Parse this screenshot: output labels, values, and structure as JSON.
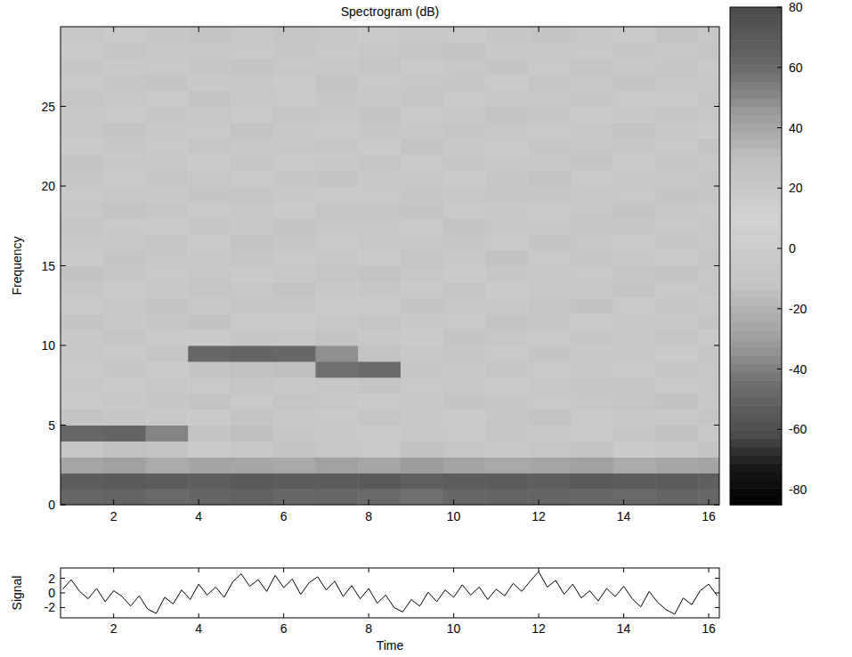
{
  "chart_data": [
    {
      "type": "heatmap",
      "title": "Spectrogram (dB)",
      "y_label": "Frequency",
      "x_bins": [
        0.75,
        1.75,
        2.75,
        3.75,
        4.75,
        5.75,
        6.75,
        7.75,
        8.75,
        9.75,
        10.75,
        11.75,
        12.75,
        13.75,
        14.75,
        15.75,
        16.25
      ],
      "y_bins": [
        0,
        1,
        2,
        3,
        4,
        5,
        6,
        7,
        8,
        9,
        10,
        11,
        12,
        13,
        14,
        15,
        16,
        17,
        18,
        19,
        20,
        21,
        22,
        23,
        24,
        25,
        26,
        27,
        28,
        29,
        30
      ],
      "cells": [
        [
          62,
          64,
          60,
          63,
          65,
          61,
          62,
          60,
          58,
          62,
          64,
          63,
          61,
          60,
          63,
          62
        ],
        [
          68,
          70,
          69,
          67,
          70,
          68,
          69,
          70,
          66,
          68,
          69,
          67,
          70,
          68,
          69,
          67
        ],
        [
          40,
          42,
          38,
          41,
          40,
          39,
          42,
          40,
          44,
          41,
          39,
          40,
          42,
          38,
          40,
          41
        ],
        [
          22,
          28,
          25,
          18,
          20,
          24,
          21,
          19,
          26,
          23,
          20,
          22,
          25,
          18,
          21,
          24
        ],
        [
          62,
          64,
          52,
          24,
          30,
          22,
          20,
          18,
          21,
          19,
          23,
          20,
          18,
          22,
          28,
          20
        ],
        [
          25,
          22,
          20,
          18,
          24,
          21,
          19,
          23,
          20,
          18,
          22,
          25,
          19,
          21,
          20,
          23
        ],
        [
          18,
          20,
          22,
          25,
          19,
          23,
          21,
          18,
          20,
          24,
          22,
          19,
          21,
          23,
          26,
          20
        ],
        [
          20,
          18,
          21,
          19,
          23,
          20,
          22,
          24,
          19,
          21,
          18,
          20,
          23,
          22,
          19,
          21
        ],
        [
          19,
          22,
          18,
          24,
          28,
          30,
          58,
          60,
          22,
          20,
          23,
          19,
          21,
          18,
          22,
          20
        ],
        [
          21,
          19,
          23,
          62,
          63,
          62,
          48,
          25,
          20,
          22,
          19,
          24,
          20,
          21,
          18,
          22
        ],
        [
          20,
          23,
          19,
          18,
          22,
          21,
          25,
          20,
          18,
          24,
          21,
          19,
          22,
          20,
          23,
          18
        ],
        [
          24,
          20,
          22,
          26,
          19,
          18,
          21,
          23,
          20,
          19,
          25,
          22,
          18,
          21,
          20,
          24
        ],
        [
          19,
          21,
          25,
          20,
          23,
          22,
          18,
          19,
          24,
          21,
          20,
          23,
          26,
          19,
          22,
          20
        ],
        [
          22,
          18,
          20,
          23,
          21,
          25,
          20,
          22,
          19,
          23,
          18,
          21,
          20,
          24,
          19,
          22
        ],
        [
          26,
          22,
          19,
          21,
          18,
          20,
          23,
          25,
          21,
          18,
          22,
          20,
          19,
          23,
          25,
          21
        ],
        [
          18,
          24,
          21,
          20,
          22,
          19,
          21,
          18,
          23,
          20,
          26,
          19,
          22,
          20,
          18,
          23
        ],
        [
          21,
          20,
          23,
          18,
          25,
          22,
          19,
          21,
          20,
          22,
          19,
          24,
          21,
          18,
          22,
          20
        ],
        [
          23,
          19,
          18,
          22,
          20,
          24,
          21,
          20,
          18,
          25,
          21,
          20,
          23,
          22,
          19,
          21
        ],
        [
          20,
          25,
          22,
          19,
          21,
          18,
          23,
          22,
          24,
          19,
          20,
          18,
          21,
          25,
          20,
          19
        ],
        [
          19,
          21,
          20,
          24,
          23,
          20,
          18,
          19,
          22,
          21,
          23,
          22,
          20,
          19,
          24,
          22
        ],
        [
          22,
          18,
          23,
          21,
          19,
          22,
          24,
          20,
          21,
          18,
          22,
          25,
          19,
          21,
          20,
          23
        ],
        [
          25,
          20,
          21,
          18,
          22,
          19,
          20,
          23,
          19,
          22,
          20,
          21,
          24,
          18,
          22,
          20
        ],
        [
          18,
          22,
          19,
          23,
          20,
          21,
          22,
          18,
          25,
          20,
          19,
          23,
          21,
          22,
          19,
          24
        ],
        [
          21,
          24,
          20,
          19,
          25,
          20,
          18,
          22,
          20,
          23,
          21,
          19,
          20,
          25,
          21,
          18
        ],
        [
          20,
          19,
          22,
          21,
          18,
          23,
          21,
          24,
          19,
          20,
          25,
          22,
          18,
          20,
          23,
          21
        ],
        [
          23,
          21,
          18,
          25,
          20,
          19,
          22,
          20,
          23,
          19,
          21,
          20,
          22,
          19,
          18,
          22
        ],
        [
          19,
          22,
          24,
          20,
          21,
          18,
          25,
          19,
          21,
          22,
          18,
          23,
          20,
          24,
          21,
          20
        ],
        [
          22,
          20,
          19,
          22,
          24,
          21,
          20,
          23,
          18,
          21,
          24,
          19,
          23,
          20,
          22,
          19
        ],
        [
          18,
          23,
          21,
          20,
          19,
          22,
          19,
          21,
          22,
          25,
          20,
          21,
          19,
          22,
          20,
          23
        ],
        [
          21,
          19,
          22,
          24,
          20,
          23,
          21,
          18,
          20,
          19,
          22,
          24,
          21,
          18,
          25,
          20
        ]
      ],
      "xlim": [
        0.75,
        16.25
      ],
      "ylim": [
        0,
        30
      ],
      "xticks": [
        2,
        4,
        6,
        8,
        10,
        12,
        14,
        16
      ],
      "yticks": [
        0,
        5,
        10,
        15,
        20,
        25
      ],
      "colorbar_range": [
        -85,
        80
      ],
      "colorbar_ticks": [
        -80,
        -60,
        -40,
        -20,
        0,
        20,
        40,
        60,
        80
      ]
    },
    {
      "type": "line",
      "x_label": "Time",
      "y_label": "Signal",
      "color": "#000000",
      "x": [
        0.8,
        1,
        1.2,
        1.4,
        1.6,
        1.8,
        2,
        2.2,
        2.4,
        2.6,
        2.8,
        3,
        3.2,
        3.4,
        3.6,
        3.8,
        4,
        4.2,
        4.4,
        4.6,
        4.8,
        5,
        5.2,
        5.4,
        5.6,
        5.8,
        6,
        6.2,
        6.4,
        6.6,
        6.8,
        7,
        7.2,
        7.4,
        7.6,
        7.8,
        8,
        8.2,
        8.4,
        8.6,
        8.8,
        9,
        9.2,
        9.4,
        9.6,
        9.8,
        10,
        10.2,
        10.4,
        10.6,
        10.8,
        11,
        11.2,
        11.4,
        11.6,
        11.8,
        12,
        12.2,
        12.4,
        12.6,
        12.8,
        13,
        13.2,
        13.4,
        13.6,
        13.8,
        14,
        14.2,
        14.4,
        14.6,
        14.8,
        15,
        15.2,
        15.4,
        15.6,
        15.8,
        16,
        16.2
      ],
      "values": [
        0.5,
        1.8,
        0.2,
        -0.8,
        0.6,
        -1.2,
        0.3,
        -0.5,
        -1.8,
        -0.4,
        -2.2,
        -2.8,
        -0.6,
        -1.5,
        0.4,
        -0.9,
        1.2,
        -0.3,
        0.8,
        -0.6,
        1.5,
        2.6,
        0.9,
        1.8,
        0.2,
        2.4,
        0.7,
        1.9,
        -0.2,
        1.4,
        2.2,
        0.4,
        1.6,
        -0.5,
        1.0,
        -0.8,
        0.6,
        -1.4,
        -0.3,
        -2.0,
        -2.6,
        -0.9,
        -1.8,
        0.1,
        -1.2,
        0.4,
        -0.6,
        1.1,
        -0.3,
        0.8,
        -0.9,
        0.5,
        -0.4,
        1.3,
        0.2,
        1.6,
        2.9,
        0.8,
        1.7,
        -0.2,
        1.2,
        -0.7,
        0.3,
        -1.1,
        0.6,
        -0.5,
        0.9,
        -0.8,
        -1.9,
        0.2,
        -1.3,
        -2.3,
        -2.9,
        -0.7,
        -1.6,
        0.3,
        1.2,
        -0.4
      ],
      "xlim": [
        0.75,
        16.25
      ],
      "ylim": [
        -3.4,
        3.4
      ],
      "xticks": [
        2,
        4,
        6,
        8,
        10,
        12,
        14,
        16
      ],
      "yticks": [
        -2,
        0,
        2
      ]
    }
  ]
}
